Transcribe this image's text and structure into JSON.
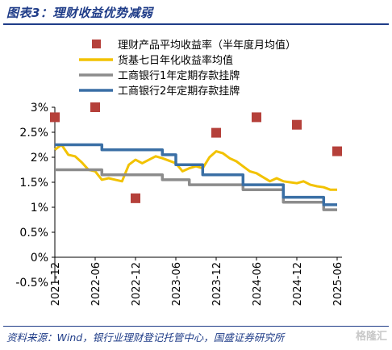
{
  "header": {
    "title": "图表3：理财收益优势减弱"
  },
  "footer": {
    "source": "资料来源：Wind，银行业理财登记托管中心，国盛证券研究所"
  },
  "watermark": {
    "text": "格隆汇"
  },
  "chart_data": {
    "type": "line",
    "title": "",
    "xlabel": "",
    "ylabel": "",
    "ylim": [
      -0.5,
      3.0
    ],
    "yticks": [
      "-0.5%",
      "0%",
      "0.5%",
      "1%",
      "1.5%",
      "2%",
      "2.5%",
      "3%"
    ],
    "ytick_values": [
      -0.5,
      0,
      0.5,
      1,
      1.5,
      2,
      2.5,
      3
    ],
    "xticks": [
      "2021-12",
      "2022-06",
      "2022-12",
      "2023-06",
      "2023-12",
      "2024-06",
      "2024-12",
      "2025-06"
    ],
    "xlim": [
      0,
      42
    ],
    "grid": false,
    "legend_position": "top",
    "series": [
      {
        "name": "理财产品平均收益率（半年度月均值）",
        "kind": "scatter",
        "color": "#b5403a",
        "x": [
          0,
          6,
          12,
          24,
          30,
          36,
          42
        ],
        "values": [
          2.8,
          3.0,
          1.18,
          2.49,
          2.8,
          2.65,
          2.12
        ]
      },
      {
        "name": "货基七日年化收益率均值",
        "kind": "line",
        "color": "#f2c200",
        "x": [
          0,
          1,
          2,
          3,
          4,
          5,
          6,
          7,
          8,
          9,
          10,
          11,
          12,
          13,
          14,
          15,
          16,
          17,
          18,
          19,
          20,
          21,
          22,
          23,
          24,
          25,
          26,
          27,
          28,
          29,
          30,
          31,
          32,
          33,
          34,
          35,
          36,
          37,
          38,
          39,
          40,
          41,
          42
        ],
        "values": [
          2.15,
          2.25,
          2.05,
          2.02,
          1.9,
          1.75,
          1.72,
          1.55,
          1.58,
          1.55,
          1.52,
          1.85,
          1.95,
          1.88,
          1.95,
          2.02,
          1.98,
          1.93,
          1.88,
          1.72,
          1.78,
          1.82,
          1.78,
          2.0,
          2.12,
          2.08,
          1.98,
          1.92,
          1.82,
          1.72,
          1.68,
          1.6,
          1.52,
          1.58,
          1.52,
          1.5,
          1.48,
          1.52,
          1.45,
          1.42,
          1.4,
          1.35,
          1.35
        ]
      },
      {
        "name": "工商银行1年定期存款挂牌",
        "kind": "step",
        "color": "#8c8c8c",
        "x": [
          0,
          7,
          7,
          16,
          16,
          20,
          20,
          28,
          28,
          34,
          34,
          40,
          40,
          42
        ],
        "values": [
          1.75,
          1.75,
          1.65,
          1.65,
          1.55,
          1.55,
          1.45,
          1.45,
          1.35,
          1.35,
          1.1,
          1.1,
          0.95,
          0.95
        ]
      },
      {
        "name": "工商银行2年定期存款挂牌",
        "kind": "step",
        "color": "#3a6fa5",
        "x": [
          0,
          7,
          7,
          16,
          16,
          18,
          18,
          20,
          20,
          22,
          22,
          28,
          28,
          34,
          34,
          40,
          40,
          42
        ],
        "values": [
          2.25,
          2.25,
          2.15,
          2.15,
          2.05,
          2.05,
          1.85,
          1.85,
          1.85,
          1.85,
          1.65,
          1.65,
          1.45,
          1.45,
          1.2,
          1.2,
          1.05,
          1.05
        ]
      }
    ]
  }
}
